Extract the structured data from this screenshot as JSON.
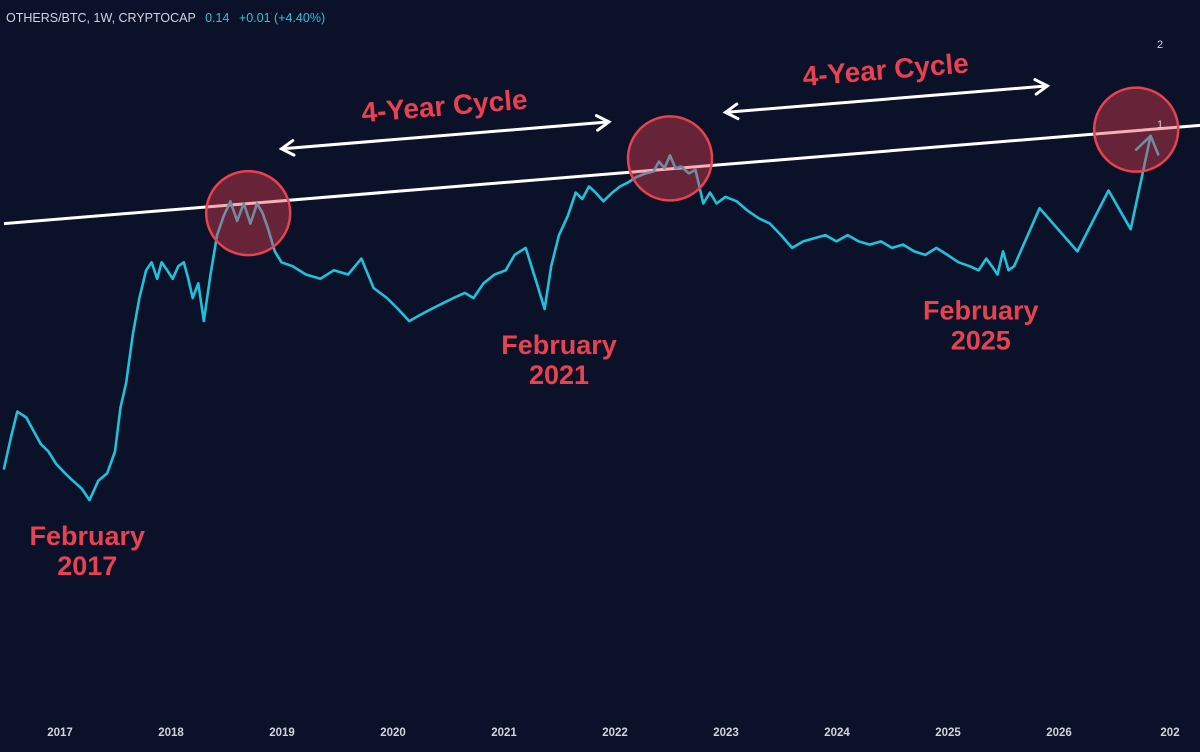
{
  "header": {
    "symbol": "OTHERS/BTC, 1W, CRYPTOCAP",
    "price": "0.14",
    "change": "+0.01 (+4.40%)"
  },
  "colors": {
    "background": "#0b1128",
    "series": "#1fc2dc",
    "annotation": "#e8414f",
    "trendline": "#ffffff",
    "axis_text": "#d1d4dc"
  },
  "chart_data": {
    "type": "line",
    "title": "OTHERS/BTC, 1W, CRYPTOCAP",
    "xlabel": "",
    "ylabel": "",
    "x_ticks": [
      "2017",
      "2018",
      "2019",
      "2020",
      "2021",
      "2022",
      "2023",
      "2024",
      "2025",
      "2026",
      "202"
    ],
    "y_ticks": [
      "2",
      "1"
    ],
    "y_scale": "log",
    "grid": false,
    "legend": "none",
    "series": [
      {
        "kind": "history",
        "x": [
          2016.0,
          2016.06,
          2016.12,
          2016.2,
          2016.26,
          2016.33,
          2016.4,
          2016.47,
          2016.55,
          2016.62,
          2016.7,
          2016.77,
          2016.85,
          2016.93,
          2017.0,
          2017.05,
          2017.1,
          2017.16,
          2017.22,
          2017.28,
          2017.33,
          2017.38,
          2017.42,
          2017.47,
          2017.52,
          2017.57,
          2017.62,
          2017.66,
          2017.7,
          2017.75,
          2017.8,
          2017.86,
          2017.92,
          2017.98,
          2018.04,
          2018.1,
          2018.16,
          2018.22,
          2018.28,
          2018.33,
          2018.38,
          2018.44,
          2018.5,
          2018.6,
          2018.72,
          2018.85,
          2018.97,
          2019.1,
          2019.22,
          2019.33,
          2019.45,
          2019.55,
          2019.65,
          2019.75,
          2019.85,
          2019.95,
          2020.05,
          2020.15,
          2020.23,
          2020.32,
          2020.42,
          2020.52,
          2020.6,
          2020.7,
          2020.8,
          2020.87,
          2020.93,
          2021.0,
          2021.08,
          2021.15,
          2021.21,
          2021.27,
          2021.33,
          2021.4,
          2021.48,
          2021.55,
          2021.62,
          2021.7,
          2021.78,
          2021.85,
          2021.9,
          2021.95,
          2022.0,
          2022.05,
          2022.1,
          2022.17,
          2022.23,
          2022.3,
          2022.36,
          2022.42,
          2022.5,
          2022.6,
          2022.7,
          2022.8,
          2022.9,
          2023.0,
          2023.1,
          2023.2,
          2023.3,
          2023.4,
          2023.5,
          2023.6,
          2023.7,
          2023.8,
          2023.9,
          2024.0,
          2024.1,
          2024.2,
          2024.3,
          2024.4,
          2024.5,
          2024.6,
          2024.7,
          2024.78,
          2024.85,
          2024.9,
          2024.95,
          2025.0,
          2025.05,
          2025.1
        ],
        "y": [
          0.05,
          0.065,
          0.082,
          0.078,
          0.07,
          0.062,
          0.058,
          0.052,
          0.048,
          0.045,
          0.042,
          0.038,
          0.045,
          0.048,
          0.058,
          0.085,
          0.105,
          0.16,
          0.22,
          0.28,
          0.3,
          0.26,
          0.3,
          0.28,
          0.26,
          0.29,
          0.3,
          0.26,
          0.22,
          0.25,
          0.18,
          0.27,
          0.38,
          0.45,
          0.51,
          0.43,
          0.5,
          0.42,
          0.5,
          0.46,
          0.4,
          0.33,
          0.3,
          0.29,
          0.27,
          0.26,
          0.28,
          0.27,
          0.31,
          0.24,
          0.22,
          0.2,
          0.18,
          0.19,
          0.2,
          0.21,
          0.22,
          0.23,
          0.22,
          0.25,
          0.27,
          0.28,
          0.32,
          0.34,
          0.25,
          0.2,
          0.29,
          0.38,
          0.45,
          0.55,
          0.52,
          0.58,
          0.55,
          0.51,
          0.55,
          0.58,
          0.6,
          0.63,
          0.65,
          0.66,
          0.72,
          0.68,
          0.76,
          0.68,
          0.69,
          0.65,
          0.67,
          0.5,
          0.55,
          0.5,
          0.53,
          0.51,
          0.47,
          0.44,
          0.42,
          0.38,
          0.34,
          0.36,
          0.37,
          0.38,
          0.36,
          0.38,
          0.36,
          0.35,
          0.36,
          0.34,
          0.35,
          0.33,
          0.32,
          0.34,
          0.32,
          0.3,
          0.29,
          0.28,
          0.31,
          0.29,
          0.27,
          0.33,
          0.28,
          0.29
        ]
      },
      {
        "kind": "projection",
        "x": [
          2025.1,
          2025.33,
          2025.67,
          2025.95,
          2026.15,
          2026.33
        ],
        "y": [
          0.29,
          0.48,
          0.33,
          0.56,
          0.4,
          0.9
        ]
      }
    ],
    "trendline": {
      "x": [
        2016.0,
        2026.95
      ],
      "y": [
        0.42,
        1.0
      ]
    },
    "annotations": {
      "peak_circles": [
        {
          "x": 2018.2,
          "y": 0.46
        },
        {
          "x": 2022.0,
          "y": 0.74
        },
        {
          "x": 2026.2,
          "y": 0.95
        }
      ],
      "cycle_arrows": [
        {
          "label": "4-Year Cycle",
          "x_start": 2018.5,
          "x_end": 2021.45
        },
        {
          "label": "4-Year Cycle",
          "x_start": 2022.5,
          "x_end": 2025.4
        }
      ],
      "date_labels": [
        {
          "line1": "February",
          "line2": "2017",
          "x": 2016.75
        },
        {
          "line1": "February",
          "line2": "2021",
          "x": 2021.0
        },
        {
          "line1": "February",
          "line2": "2025",
          "x": 2024.8
        }
      ]
    }
  }
}
